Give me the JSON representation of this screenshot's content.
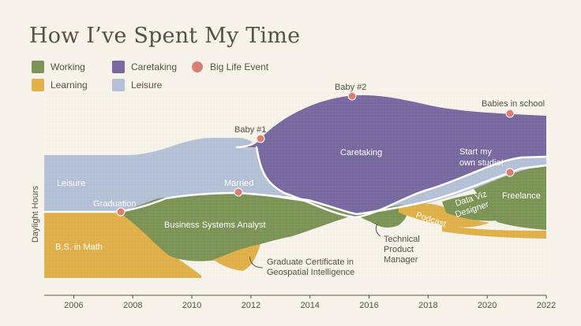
{
  "title": "How I’ve Spent My Time",
  "colors": {
    "working": "#7c9456",
    "learning": "#e0b04a",
    "caretaking": "#786aa0",
    "leisure": "#b4c1d7",
    "event": "#d77f70",
    "background": "#f8f3ea",
    "text": "#5a4f45"
  },
  "legend": {
    "working": "Working",
    "caretaking": "Caretaking",
    "event": "Big Life Event",
    "learning": "Learning",
    "leisure": "Leisure"
  },
  "chart_data": {
    "type": "area",
    "title": "How I’ve Spent My Time",
    "ylabel": "Daylight Hours",
    "xlim": [
      2005,
      2022
    ],
    "x_ticks": [
      "2006",
      "2008",
      "2010",
      "2012",
      "2014",
      "2016",
      "2018",
      "2020",
      "2022"
    ],
    "legend_position": "top-left",
    "grid": false,
    "events": [
      {
        "label": "Graduation",
        "year": 2007.6
      },
      {
        "label": "Married",
        "year": 2011.6
      },
      {
        "label": "Baby #1",
        "year": 2012.3
      },
      {
        "label": "Baby #2",
        "year": 2015.3
      },
      {
        "label": "Babies in school",
        "year": 2020.7
      },
      {
        "label": "Start my own studio!",
        "year": 2020.7
      }
    ],
    "segment_labels": {
      "leisure": "Leisure",
      "bs_math": "B.S. in Math",
      "business_analyst": "Business Systems Analyst",
      "grad_cert_1": "Graduate Certificate in",
      "grad_cert_2": "Geospatial Intelligence",
      "caretaking": "Caretaking",
      "tpm_1": "Technical",
      "tpm_2": "Product",
      "tpm_3": "Manager",
      "podcast": "Podcast",
      "dataviz_1": "Data Viz",
      "dataviz_2": "Designer",
      "freelance": "Freelance"
    }
  }
}
